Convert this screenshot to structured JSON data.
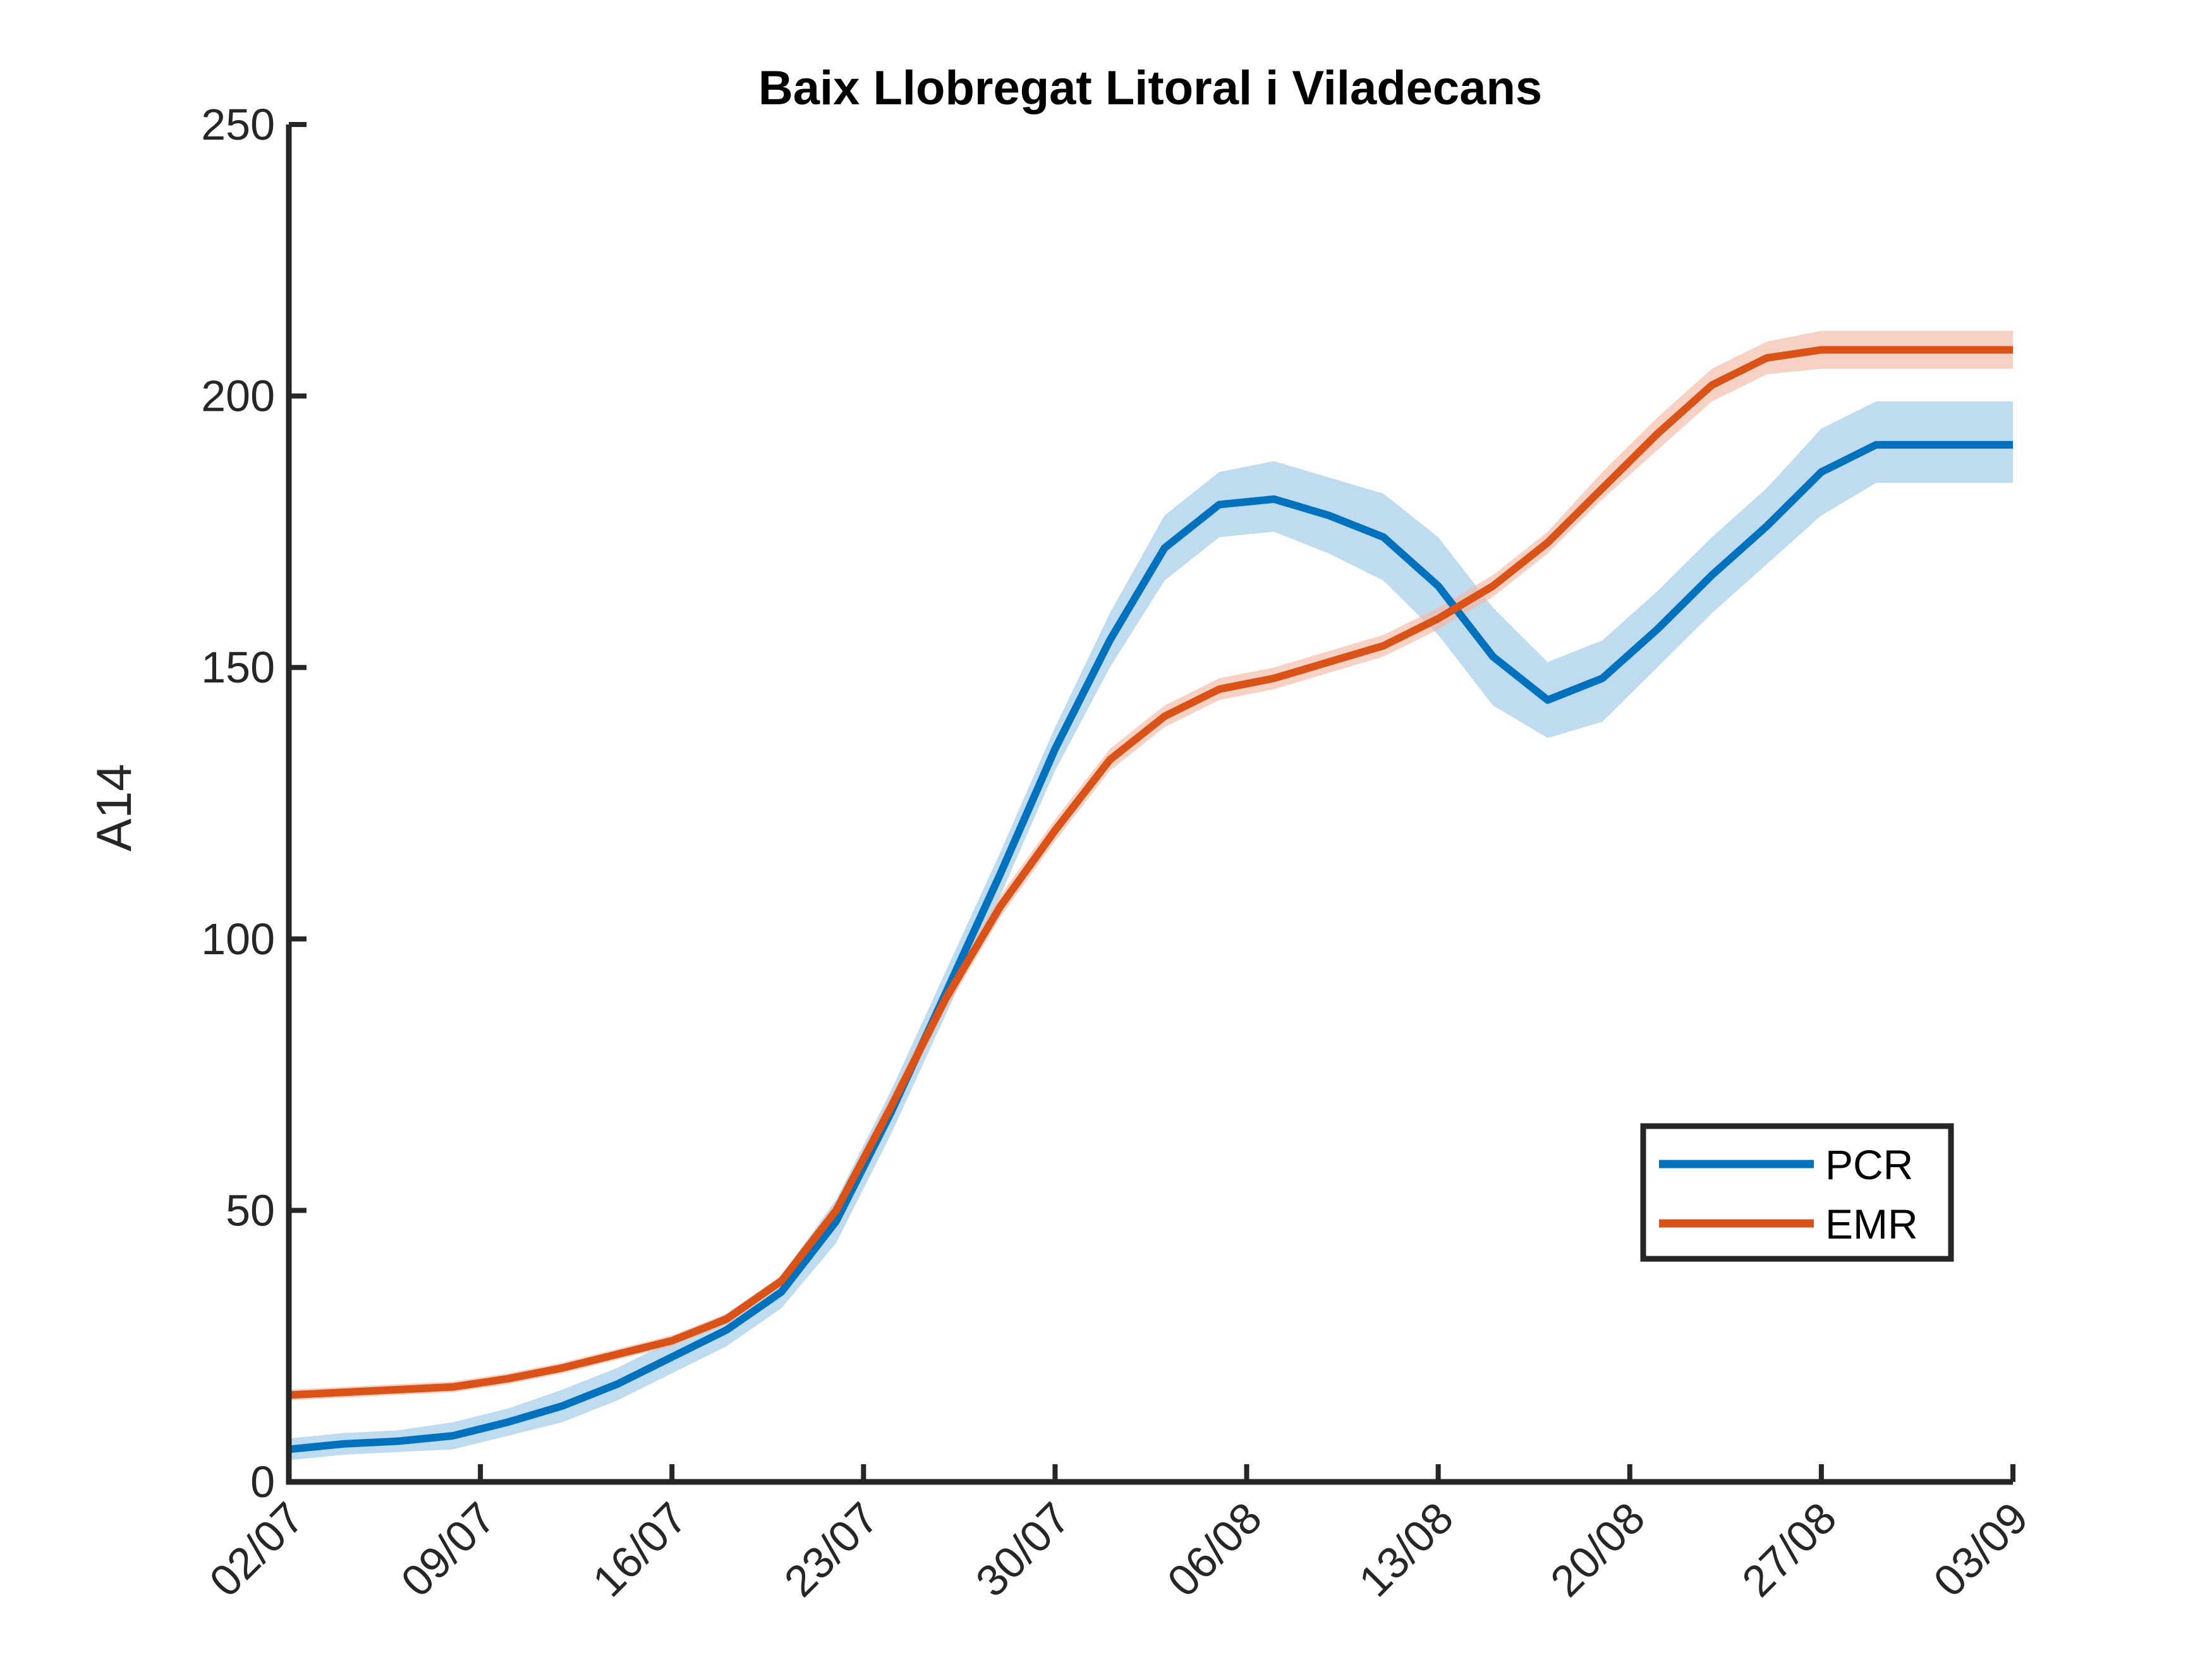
{
  "chart_data": {
    "type": "line",
    "title": "Baix Llobregat Litoral i Viladecans",
    "xlabel": "",
    "ylabel": "A14",
    "ylim": [
      0,
      250
    ],
    "yticks": [
      0,
      50,
      100,
      150,
      200,
      250
    ],
    "xlim": [
      "02/07",
      "03/09"
    ],
    "xticks": [
      "02/07",
      "09/07",
      "16/07",
      "23/07",
      "30/07",
      "06/08",
      "13/08",
      "20/08",
      "27/08",
      "03/09"
    ],
    "grid": false,
    "legend_position": "bottom-right",
    "series": [
      {
        "name": "PCR",
        "color": "#0072BD",
        "band_color": "#9CC7E6",
        "x": [
          "02/07",
          "04/07",
          "06/07",
          "08/07",
          "10/07",
          "12/07",
          "14/07",
          "16/07",
          "18/07",
          "20/07",
          "22/07",
          "24/07",
          "26/07",
          "28/07",
          "30/07",
          "01/08",
          "03/08",
          "05/08",
          "07/08",
          "09/08",
          "11/08",
          "13/08",
          "15/08",
          "17/08",
          "19/08",
          "21/08",
          "23/08",
          "25/08",
          "27/08",
          "29/08",
          "31/08",
          "02/09",
          "03/09"
        ],
        "values": [
          6,
          7,
          7.5,
          8.5,
          11,
          14,
          18,
          23,
          28,
          35,
          48,
          68,
          90,
          112,
          135,
          155,
          172,
          180,
          181,
          178,
          174,
          165,
          152,
          144,
          148,
          157,
          167,
          176,
          186,
          191,
          191,
          191,
          191
        ],
        "lower": [
          4,
          5,
          5.5,
          6,
          8.5,
          11,
          15,
          20,
          25,
          32,
          44,
          64,
          86,
          108,
          131,
          150,
          166,
          174,
          175,
          171,
          166,
          156,
          143,
          137,
          140,
          150,
          160,
          169,
          178,
          184,
          184,
          184,
          184
        ],
        "upper": [
          8,
          9,
          9.5,
          11,
          13.5,
          17,
          21,
          26,
          31,
          38,
          52,
          72,
          94,
          116,
          139,
          160,
          178,
          186,
          188,
          185,
          182,
          174,
          161,
          151,
          155,
          164,
          174,
          183,
          194,
          199,
          199,
          199,
          199
        ]
      },
      {
        "name": "EMR",
        "color": "#D95319",
        "band_color": "#F2B9A3",
        "x": [
          "02/07",
          "04/07",
          "06/07",
          "08/07",
          "10/07",
          "12/07",
          "14/07",
          "16/07",
          "18/07",
          "20/07",
          "22/07",
          "24/07",
          "26/07",
          "28/07",
          "30/07",
          "01/08",
          "03/08",
          "05/08",
          "07/08",
          "09/08",
          "11/08",
          "13/08",
          "15/08",
          "17/08",
          "19/08",
          "21/08",
          "23/08",
          "25/08",
          "27/08",
          "29/08",
          "31/08",
          "02/09",
          "03/09"
        ],
        "values": [
          16,
          16.5,
          17,
          17.5,
          19,
          21,
          23.5,
          26,
          30,
          37,
          50,
          69,
          89,
          106,
          120,
          133,
          141,
          146,
          148,
          151,
          154,
          159,
          165,
          173,
          183,
          193,
          202,
          207,
          208.5,
          208.5,
          208.5,
          208.5,
          208.5
        ],
        "lower": [
          15,
          15.5,
          16,
          16.5,
          18,
          20,
          22.5,
          25,
          29,
          36,
          48.5,
          67,
          87,
          104,
          118,
          131,
          139,
          144,
          146,
          149,
          152,
          157,
          163,
          171,
          181,
          190,
          199,
          204,
          205,
          205,
          205,
          205,
          205
        ],
        "upper": [
          17,
          17.5,
          18,
          18.5,
          20,
          22,
          24.5,
          27,
          31,
          38,
          51.5,
          71,
          91,
          108,
          122,
          135,
          143,
          148,
          150,
          153,
          156,
          161,
          167,
          175,
          186,
          196,
          205,
          210,
          212,
          212,
          212,
          212,
          212
        ]
      }
    ]
  }
}
